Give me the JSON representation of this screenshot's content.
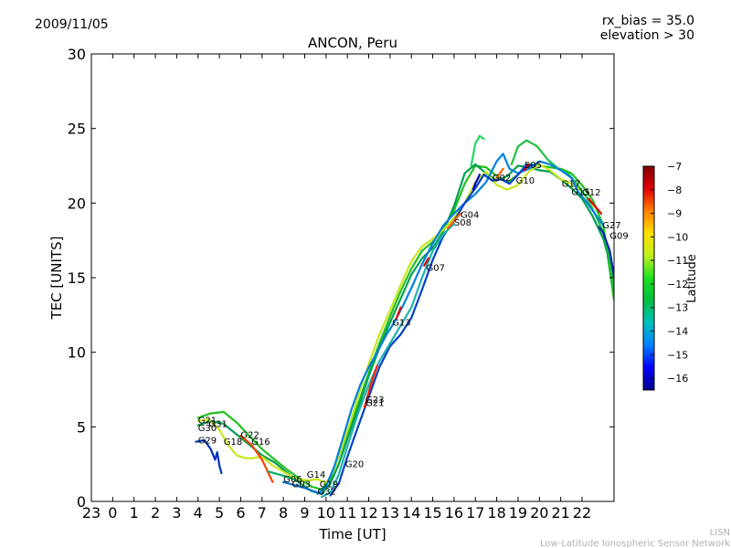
{
  "header": {
    "date": "2009/11/05",
    "rx_bias": "rx_bias = 35.0",
    "elevation": "elevation > 30"
  },
  "footer": {
    "org_short": "LISN",
    "org_full": "Low-Latitude Ionospheric Sensor Network"
  },
  "chart_data": {
    "type": "line",
    "title": "ANCON, Peru",
    "xlabel": "Time [UT]",
    "ylabel": "TEC [UNITS]",
    "ylim": [
      0,
      30
    ],
    "xlim": [
      -1,
      23.5
    ],
    "yticks": [
      0,
      5,
      10,
      15,
      20,
      25,
      30
    ],
    "xtick_values": [
      -1,
      0,
      1,
      2,
      3,
      4,
      5,
      6,
      7,
      8,
      9,
      10,
      11,
      12,
      13,
      14,
      15,
      16,
      17,
      18,
      19,
      20,
      21,
      22
    ],
    "xtick_labels": [
      "23",
      "0",
      "1",
      "2",
      "3",
      "4",
      "5",
      "6",
      "7",
      "8",
      "9",
      "10",
      "11",
      "12",
      "13",
      "14",
      "15",
      "16",
      "17",
      "18",
      "19",
      "20",
      "21",
      "22"
    ],
    "grid": false,
    "colorbar": {
      "label": "Latitude",
      "min": -16.5,
      "max": -7,
      "ticks": [
        -7,
        -8,
        -9,
        -10,
        -11,
        -12,
        -13,
        -14,
        -15,
        -16
      ],
      "colormap": [
        "#00008f",
        "#0000ff",
        "#0080ff",
        "#00c0c0",
        "#00c040",
        "#20e020",
        "#c0f020",
        "#ffe000",
        "#ff8000",
        "#e00000",
        "#800000"
      ]
    },
    "series": [
      {
        "color": "#20c020",
        "points": [
          [
            4,
            5.6
          ],
          [
            4.6,
            5.9
          ],
          [
            5.2,
            6.0
          ],
          [
            5.8,
            5.3
          ],
          [
            6.4,
            4.4
          ],
          [
            7.0,
            3.5
          ],
          [
            7.6,
            2.8
          ],
          [
            8.2,
            2.1
          ],
          [
            8.8,
            1.5
          ],
          [
            9.3,
            1.0
          ],
          [
            9.8,
            0.8
          ],
          [
            10.2,
            1.5
          ],
          [
            10.6,
            3.0
          ],
          [
            11.0,
            4.6
          ],
          [
            11.5,
            6.5
          ],
          [
            12.0,
            8.6
          ],
          [
            12.5,
            10.6
          ],
          [
            13.0,
            12.4
          ],
          [
            13.5,
            14.1
          ],
          [
            14.0,
            15.6
          ],
          [
            14.5,
            16.8
          ],
          [
            15.0,
            17.4
          ],
          [
            15.5,
            18.3
          ],
          [
            16.0,
            19.5
          ],
          [
            16.5,
            21.3
          ],
          [
            17.0,
            22.5
          ],
          [
            17.5,
            22.4
          ],
          [
            18.0,
            21.8
          ],
          [
            18.5,
            21.4
          ],
          [
            19.0,
            21.9
          ],
          [
            19.5,
            22.6
          ],
          [
            20.0,
            22.5
          ],
          [
            20.5,
            22.4
          ],
          [
            21.0,
            22.3
          ],
          [
            21.5,
            22.0
          ],
          [
            22.0,
            21.2
          ],
          [
            22.5,
            20.2
          ],
          [
            23.0,
            18.5
          ],
          [
            23.5,
            13.5
          ]
        ]
      },
      {
        "color": "#00a050",
        "points": [
          [
            4,
            5.1
          ],
          [
            4.6,
            5.4
          ],
          [
            5.2,
            5.2
          ],
          [
            5.8,
            4.5
          ],
          [
            6.4,
            3.8
          ],
          [
            7.0,
            3.1
          ],
          [
            7.6,
            2.6
          ],
          [
            8.2,
            1.9
          ],
          [
            8.8,
            1.2
          ],
          [
            9.3,
            0.7
          ],
          [
            9.8,
            0.5
          ],
          [
            10.2,
            1.2
          ],
          [
            10.6,
            2.5
          ],
          [
            11.0,
            4.2
          ],
          [
            11.5,
            6.2
          ],
          [
            12.0,
            8.4
          ],
          [
            12.5,
            10.3
          ],
          [
            13.0,
            12.0
          ],
          [
            13.5,
            13.6
          ],
          [
            14.0,
            15.2
          ],
          [
            14.5,
            16.3
          ],
          [
            15.0,
            17.0
          ],
          [
            15.5,
            18.1
          ],
          [
            16.0,
            19.8
          ],
          [
            16.5,
            22.0
          ],
          [
            17.0,
            22.6
          ],
          [
            17.5,
            22.0
          ],
          [
            18.0,
            21.5
          ],
          [
            18.5,
            21.8
          ],
          [
            19.0,
            22.5
          ],
          [
            19.5,
            22.4
          ],
          [
            20.0,
            22.2
          ],
          [
            20.5,
            22.1
          ],
          [
            21.0,
            21.6
          ],
          [
            21.5,
            21.0
          ],
          [
            22.0,
            20.3
          ],
          [
            22.5,
            19.1
          ],
          [
            23.0,
            17.6
          ],
          [
            23.5,
            15.0
          ]
        ]
      },
      {
        "color": "#c8e61e",
        "points": [
          [
            4,
            5.4
          ],
          [
            4.5,
            5.5
          ],
          [
            5.0,
            4.8
          ],
          [
            5.4,
            3.8
          ],
          [
            5.8,
            3.1
          ],
          [
            6.2,
            2.9
          ],
          [
            6.6,
            2.9
          ],
          [
            7.0,
            3.0
          ],
          [
            7.5,
            2.4
          ],
          [
            8.0,
            2.0
          ],
          [
            8.6,
            1.5
          ],
          [
            9.2,
            1.4
          ],
          [
            9.6,
            1.5
          ],
          [
            10.0,
            1.2
          ],
          [
            10.4,
            2.2
          ],
          [
            10.8,
            3.9
          ],
          [
            11.2,
            5.6
          ],
          [
            11.6,
            7.5
          ],
          [
            12.0,
            9.2
          ],
          [
            12.5,
            11.2
          ],
          [
            13.0,
            12.8
          ],
          [
            13.5,
            14.5
          ],
          [
            14.0,
            16.1
          ],
          [
            14.5,
            17.1
          ],
          [
            15.0,
            17.6
          ],
          [
            15.5,
            18.2
          ],
          [
            16.0,
            19.0
          ],
          [
            16.5,
            20.0
          ],
          [
            17.0,
            21.4
          ],
          [
            17.5,
            22.1
          ],
          [
            18.0,
            21.2
          ],
          [
            18.5,
            20.9
          ],
          [
            19.0,
            21.2
          ],
          [
            19.5,
            22.1
          ],
          [
            20.0,
            22.6
          ],
          [
            20.5,
            22.2
          ],
          [
            21.0,
            21.6
          ],
          [
            21.5,
            21.3
          ],
          [
            22.0,
            20.8
          ],
          [
            22.5,
            19.7
          ]
        ]
      },
      {
        "color": "#20d860",
        "points": [
          [
            16.8,
            22.5
          ],
          [
            17.0,
            24.0
          ],
          [
            17.2,
            24.5
          ],
          [
            17.4,
            24.3
          ]
        ]
      },
      {
        "color": "#20c040",
        "points": [
          [
            18.7,
            22.6
          ],
          [
            19.0,
            23.8
          ],
          [
            19.4,
            24.2
          ],
          [
            19.9,
            23.8
          ],
          [
            20.4,
            22.9
          ],
          [
            20.9,
            22.3
          ],
          [
            21.4,
            21.9
          ],
          [
            21.8,
            21.2
          ],
          [
            22.2,
            20.4
          ],
          [
            22.6,
            19.3
          ],
          [
            23.0,
            18.0
          ],
          [
            23.3,
            16.3
          ],
          [
            23.5,
            14.2
          ]
        ]
      },
      {
        "color": "#0080e0",
        "points": [
          [
            9.6,
            0.5
          ],
          [
            10.0,
            1.0
          ],
          [
            10.4,
            2.4
          ],
          [
            10.8,
            4.3
          ],
          [
            11.2,
            6.2
          ],
          [
            11.6,
            7.8
          ],
          [
            12.0,
            9.0
          ],
          [
            12.4,
            10.0
          ],
          [
            12.8,
            11.1
          ],
          [
            13.2,
            12.0
          ],
          [
            13.6,
            13.1
          ],
          [
            14.0,
            14.3
          ],
          [
            14.5,
            15.9
          ],
          [
            15.0,
            17.3
          ],
          [
            15.5,
            18.5
          ],
          [
            16.0,
            19.3
          ],
          [
            16.5,
            20.0
          ],
          [
            17.0,
            20.6
          ],
          [
            17.5,
            21.4
          ],
          [
            18.0,
            22.8
          ],
          [
            18.3,
            23.3
          ],
          [
            18.6,
            22.3
          ],
          [
            19.0,
            22.0
          ],
          [
            19.5,
            22.3
          ],
          [
            20.0,
            22.8
          ],
          [
            20.5,
            22.6
          ],
          [
            21.0,
            22.2
          ],
          [
            21.5,
            21.7
          ],
          [
            21.8,
            20.8
          ],
          [
            22.2,
            20.1
          ],
          [
            22.6,
            19.3
          ],
          [
            23.0,
            18.5
          ]
        ]
      },
      {
        "color": "#0040c8",
        "points": [
          [
            10.2,
            0.4
          ],
          [
            10.6,
            1.2
          ],
          [
            11.0,
            3.0
          ],
          [
            11.5,
            5.0
          ],
          [
            12.0,
            7.0
          ],
          [
            12.5,
            9.0
          ],
          [
            13.0,
            10.4
          ],
          [
            13.5,
            11.2
          ],
          [
            14.0,
            12.3
          ],
          [
            14.5,
            14.2
          ],
          [
            15.0,
            16.2
          ],
          [
            15.5,
            17.8
          ],
          [
            16.0,
            18.8
          ],
          [
            16.5,
            20.0
          ],
          [
            17.0,
            21.0
          ],
          [
            17.4,
            21.9
          ],
          [
            17.8,
            21.5
          ],
          [
            18.2,
            21.6
          ],
          [
            18.6,
            21.3
          ],
          [
            19.0,
            21.9
          ],
          [
            19.4,
            22.6
          ],
          [
            19.8,
            22.5
          ]
        ]
      },
      {
        "color": "#20b0b0",
        "points": [
          [
            9.8,
            0.3
          ],
          [
            10.2,
            0.6
          ],
          [
            10.6,
            1.8
          ],
          [
            11.0,
            3.7
          ],
          [
            11.5,
            5.9
          ],
          [
            12.0,
            7.8
          ],
          [
            12.5,
            9.4
          ],
          [
            13.0,
            10.6
          ],
          [
            13.5,
            11.8
          ],
          [
            14.0,
            13.0
          ],
          [
            14.5,
            15.0
          ],
          [
            15.0,
            16.8
          ],
          [
            15.5,
            17.9
          ],
          [
            16.0,
            18.6
          ]
        ]
      },
      {
        "color": "#0020b0",
        "points": [
          [
            22.8,
            18.4
          ],
          [
            23.0,
            18.0
          ],
          [
            23.3,
            16.8
          ],
          [
            23.5,
            15.1
          ]
        ]
      },
      {
        "color": "#0000c8",
        "points": [
          [
            16.9,
            20.9
          ],
          [
            17.0,
            21.3
          ],
          [
            17.1,
            21.6
          ],
          [
            17.2,
            21.9
          ]
        ]
      },
      {
        "color": "#ff6000",
        "points": [
          [
            15.7,
            18.3
          ],
          [
            16.0,
            18.8
          ],
          [
            16.3,
            19.3
          ]
        ]
      },
      {
        "color": "#e00000",
        "points": [
          [
            22.3,
            20.3
          ],
          [
            22.6,
            19.8
          ],
          [
            22.9,
            19.3
          ]
        ]
      },
      {
        "color": "#ff4000",
        "points": [
          [
            6.0,
            4.4
          ],
          [
            6.5,
            3.8
          ],
          [
            7.0,
            2.8
          ],
          [
            7.5,
            1.3
          ]
        ]
      },
      {
        "color": "#0030c0",
        "points": [
          [
            3.9,
            4.0
          ],
          [
            4.3,
            4.1
          ],
          [
            4.6,
            3.5
          ],
          [
            4.8,
            2.8
          ],
          [
            4.9,
            3.3
          ],
          [
            5.0,
            2.4
          ],
          [
            5.1,
            1.9
          ]
        ]
      },
      {
        "color": "#0070d0",
        "points": [
          [
            8.0,
            1.3
          ],
          [
            8.5,
            1.1
          ],
          [
            9.0,
            0.9
          ],
          [
            9.4,
            0.7
          ],
          [
            9.8,
            0.5
          ]
        ]
      },
      {
        "color": "#00b060",
        "points": [
          [
            7.3,
            2.0
          ],
          [
            7.8,
            1.8
          ],
          [
            8.3,
            1.6
          ],
          [
            8.8,
            1.3
          ]
        ]
      },
      {
        "color": "#ff2000",
        "points": [
          [
            11.8,
            6.3
          ],
          [
            12.1,
            7.8
          ],
          [
            12.4,
            9.1
          ]
        ]
      },
      {
        "color": "#e01000",
        "points": [
          [
            13.3,
            12.3
          ],
          [
            13.5,
            13.0
          ]
        ]
      },
      {
        "color": "#d00000",
        "points": [
          [
            14.6,
            15.8
          ],
          [
            14.8,
            16.3
          ]
        ]
      },
      {
        "color": "#ff6000",
        "points": [
          [
            18.0,
            21.7
          ],
          [
            18.3,
            22.3
          ]
        ]
      },
      {
        "color": "#d00000",
        "points": [
          [
            19.3,
            22.2
          ],
          [
            19.5,
            22.6
          ]
        ]
      }
    ],
    "annotations": [
      {
        "text": "G21",
        "x": 4.0,
        "y": 5.25
      },
      {
        "text": "G31",
        "x": 4.5,
        "y": 5.0
      },
      {
        "text": "G30",
        "x": 4.0,
        "y": 4.7
      },
      {
        "text": "G22",
        "x": 6.0,
        "y": 4.25
      },
      {
        "text": "G29",
        "x": 4.0,
        "y": 3.9
      },
      {
        "text": "G18",
        "x": 5.2,
        "y": 3.8
      },
      {
        "text": "G16",
        "x": 6.5,
        "y": 3.8
      },
      {
        "text": "G14",
        "x": 9.1,
        "y": 1.6
      },
      {
        "text": "G06",
        "x": 8.0,
        "y": 1.3
      },
      {
        "text": "G03",
        "x": 8.4,
        "y": 0.95
      },
      {
        "text": "G19",
        "x": 9.7,
        "y": 0.95
      },
      {
        "text": "G32",
        "x": 9.6,
        "y": 0.45
      },
      {
        "text": "G20",
        "x": 10.9,
        "y": 2.3
      },
      {
        "text": "G23",
        "x": 11.85,
        "y": 6.6
      },
      {
        "text": "G21",
        "x": 11.85,
        "y": 6.4
      },
      {
        "text": "G13",
        "x": 13.1,
        "y": 11.8
      },
      {
        "text": "G07",
        "x": 14.7,
        "y": 15.45
      },
      {
        "text": "G04",
        "x": 16.3,
        "y": 19.0
      },
      {
        "text": "S08",
        "x": 16.0,
        "y": 18.5
      },
      {
        "text": "G02",
        "x": 17.8,
        "y": 21.5
      },
      {
        "text": "G10",
        "x": 18.9,
        "y": 21.3
      },
      {
        "text": "S05",
        "x": 19.3,
        "y": 22.35
      },
      {
        "text": "G17",
        "x": 21.05,
        "y": 21.1
      },
      {
        "text": "G15",
        "x": 21.5,
        "y": 20.55
      },
      {
        "text": "G12",
        "x": 22.0,
        "y": 20.5
      },
      {
        "text": "G27",
        "x": 22.95,
        "y": 18.3
      },
      {
        "text": "G09",
        "x": 23.3,
        "y": 17.6
      }
    ]
  }
}
